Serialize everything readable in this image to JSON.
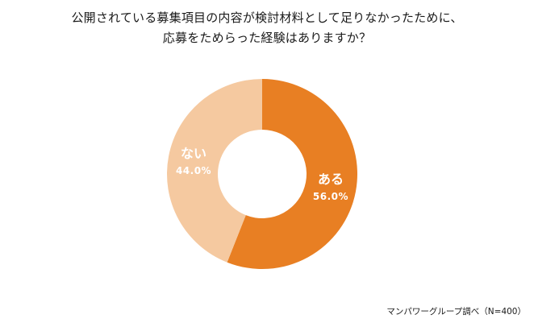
{
  "chart_data": {
    "type": "pie",
    "title_lines": [
      "公開されている募集項目の内容が検討材料として足りなかったために、",
      "応募をためらった経験はありますか？"
    ],
    "slices": [
      {
        "label": "ある",
        "value": 56.0,
        "display": "56.0%",
        "color": "#e87f23"
      },
      {
        "label": "ない",
        "value": 44.0,
        "display": "44.0%",
        "color": "#f5c9a0"
      }
    ],
    "donut": true,
    "legend": "none"
  },
  "footnote": "マンパワーグループ調べ（N=400）"
}
